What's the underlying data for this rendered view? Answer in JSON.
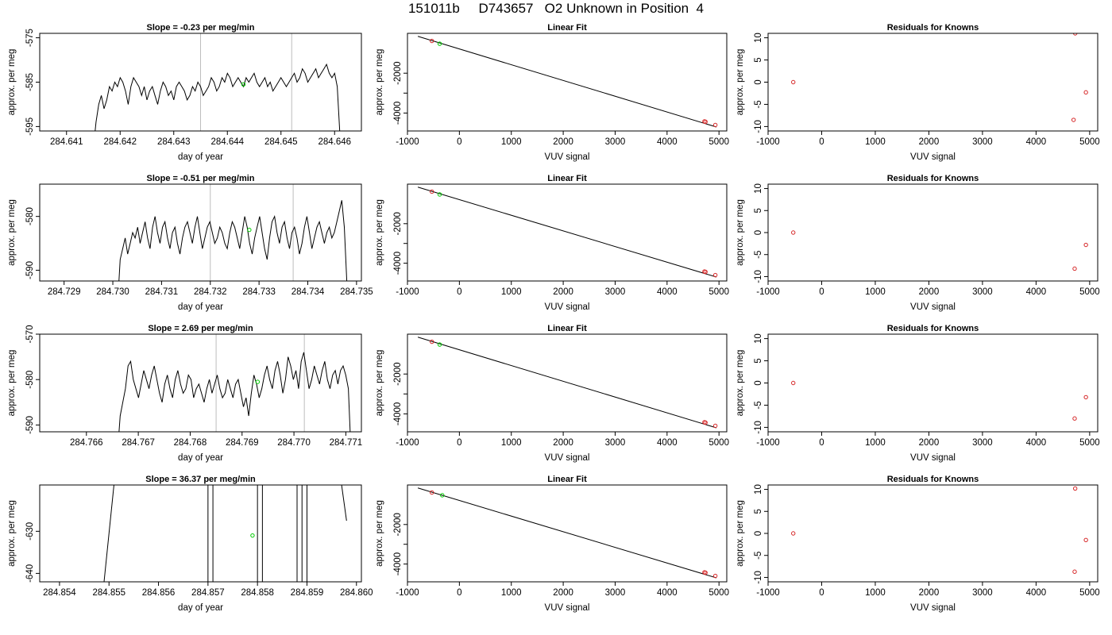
{
  "page": {
    "title": "151011b     D743657   O2 Unknown in Position  4"
  },
  "chart_data": [
    {
      "id": "ts1",
      "type": "line",
      "title": "Slope =  -0.23  per meg/min",
      "xlabel": "day of year",
      "ylabel": "approx. per meg",
      "xlim": [
        284.6405,
        284.6465
      ],
      "ylim": [
        -596,
        -574
      ],
      "xticks": [
        284.641,
        284.642,
        284.643,
        284.644,
        284.645,
        284.646
      ],
      "xtick_labels": [
        "284.641",
        "284.642",
        "284.643",
        "284.644",
        "284.645",
        "284.646"
      ],
      "yticks": [
        -595,
        -585,
        -575
      ],
      "ytick_labels": [
        "-595",
        "-585",
        "-575"
      ],
      "vlines": [
        284.6435,
        284.6452
      ],
      "x_start": 284.6415,
      "x_end": 284.6461,
      "base": -586,
      "series": [
        {
          "values": [
            -600,
            -594,
            -590,
            -588,
            -591,
            -589,
            -586,
            -587,
            -585,
            -586,
            -584,
            -585,
            -587,
            -590,
            -586,
            -584,
            -585,
            -586,
            -588,
            -586,
            -589,
            -587,
            -586,
            -588,
            -590,
            -587,
            -585,
            -586,
            -588,
            -587,
            -589,
            -586,
            -585,
            -586,
            -587,
            -589,
            -588,
            -586,
            -587,
            -585,
            -586,
            -588,
            -587,
            -586,
            -584,
            -585,
            -587,
            -586,
            -584,
            -585,
            -583,
            -584,
            -586,
            -585,
            -584,
            -585,
            -586,
            -584,
            -585,
            -584,
            -583,
            -585,
            -586,
            -585,
            -584,
            -586,
            -585,
            -587,
            -586,
            -585,
            -584,
            -585,
            -586,
            -585,
            -584,
            -583,
            -585,
            -584,
            -582,
            -583,
            -585,
            -584,
            -583,
            -582,
            -584,
            -583,
            -582,
            -581,
            -583,
            -584,
            -583,
            -586,
            -597
          ]
        }
      ],
      "markers": [
        {
          "x": 284.6443,
          "y": -585.5,
          "color": "#00cc00"
        }
      ]
    },
    {
      "id": "fit1",
      "type": "scatter",
      "title": "Linear Fit",
      "xlabel": "VUV signal",
      "ylabel": "approx. per meg",
      "xlim": [
        -1000,
        5150
      ],
      "ylim": [
        -4900,
        0
      ],
      "xticks": [
        -1000,
        0,
        1000,
        2000,
        3000,
        4000,
        5000
      ],
      "xtick_labels": [
        "-1000",
        "0",
        "1000",
        "2000",
        "3000",
        "4000",
        "5000"
      ],
      "yticks": [
        -4000,
        -3000,
        -2000
      ],
      "ytick_labels": [
        "-4000",
        "",
        "-2000"
      ],
      "fit_line": [
        [
          -800,
          -150
        ],
        [
          4950,
          -4700
        ]
      ],
      "points": [
        {
          "x": -530,
          "y": -380,
          "color": "#d62728"
        },
        {
          "x": -380,
          "y": -520,
          "color": "#00cc00"
        },
        {
          "x": 4720,
          "y": -4420,
          "color": "#d62728"
        },
        {
          "x": 4740,
          "y": -4440,
          "color": "#d62728"
        },
        {
          "x": 4930,
          "y": -4600,
          "color": "#d62728"
        }
      ]
    },
    {
      "id": "res1",
      "type": "scatter",
      "title": "Residuals for Knowns",
      "xlabel": "VUV signal",
      "ylabel": "approx. per meg",
      "xlim": [
        -1000,
        5150
      ],
      "ylim": [
        -11,
        11
      ],
      "xticks": [
        -1000,
        0,
        1000,
        2000,
        3000,
        4000,
        5000
      ],
      "xtick_labels": [
        "-1000",
        "0",
        "1000",
        "2000",
        "3000",
        "4000",
        "5000"
      ],
      "yticks": [
        -10,
        -5,
        0,
        5,
        10
      ],
      "ytick_labels": [
        "-10",
        "-5",
        "0",
        "5",
        "10"
      ],
      "points": [
        {
          "x": -530,
          "y": 0,
          "color": "#d62728"
        },
        {
          "x": 4700,
          "y": -8.5,
          "color": "#d62728"
        },
        {
          "x": 4730,
          "y": 11,
          "color": "#d62728"
        },
        {
          "x": 4930,
          "y": -2.3,
          "color": "#d62728"
        }
      ]
    },
    {
      "id": "ts2",
      "type": "line",
      "title": "Slope =  -0.51  per meg/min",
      "xlabel": "day of year",
      "ylabel": "approx. per meg",
      "xlim": [
        284.7285,
        284.7351
      ],
      "ylim": [
        -592,
        -574
      ],
      "xticks": [
        284.729,
        284.73,
        284.731,
        284.732,
        284.733,
        284.734,
        284.735
      ],
      "xtick_labels": [
        "284.729",
        "284.730",
        "284.731",
        "284.732",
        "284.733",
        "284.734",
        "284.735"
      ],
      "yticks": [
        -590,
        -580
      ],
      "ytick_labels": [
        "-590",
        "-580"
      ],
      "vlines": [
        284.732,
        284.7337
      ],
      "x_start": 284.7301,
      "x_end": 284.7348,
      "base": -583,
      "series": [
        {
          "values": [
            -596,
            -588,
            -586,
            -584,
            -587,
            -585,
            -583,
            -584,
            -582,
            -585,
            -583,
            -581,
            -584,
            -586,
            -582,
            -580,
            -583,
            -585,
            -582,
            -581,
            -584,
            -586,
            -583,
            -582,
            -585,
            -587,
            -584,
            -582,
            -581,
            -583,
            -585,
            -582,
            -580,
            -583,
            -586,
            -584,
            -582,
            -581,
            -583,
            -585,
            -584,
            -582,
            -583,
            -585,
            -586,
            -583,
            -581,
            -582,
            -584,
            -586,
            -583,
            -580,
            -582,
            -585,
            -587,
            -584,
            -582,
            -580,
            -583,
            -586,
            -588,
            -584,
            -581,
            -580,
            -583,
            -585,
            -582,
            -581,
            -584,
            -586,
            -583,
            -582,
            -584,
            -587,
            -585,
            -582,
            -580,
            -583,
            -586,
            -584,
            -582,
            -581,
            -583,
            -585,
            -583,
            -582,
            -584,
            -583,
            -581,
            -579,
            -577,
            -582,
            -592
          ]
        }
      ],
      "markers": [
        {
          "x": 284.7328,
          "y": -582.5,
          "color": "#00cc00"
        }
      ]
    },
    {
      "id": "fit2",
      "type": "scatter",
      "title": "Linear Fit",
      "xlabel": "VUV signal",
      "ylabel": "approx. per meg",
      "xlim": [
        -1000,
        5150
      ],
      "ylim": [
        -4900,
        0
      ],
      "xticks": [
        -1000,
        0,
        1000,
        2000,
        3000,
        4000,
        5000
      ],
      "xtick_labels": [
        "-1000",
        "0",
        "1000",
        "2000",
        "3000",
        "4000",
        "5000"
      ],
      "yticks": [
        -4000,
        -3000,
        -2000
      ],
      "ytick_labels": [
        "-4000",
        "",
        "-2000"
      ],
      "fit_line": [
        [
          -800,
          -150
        ],
        [
          4950,
          -4700
        ]
      ],
      "points": [
        {
          "x": -530,
          "y": -380,
          "color": "#d62728"
        },
        {
          "x": -380,
          "y": -520,
          "color": "#00cc00"
        },
        {
          "x": 4720,
          "y": -4420,
          "color": "#d62728"
        },
        {
          "x": 4740,
          "y": -4440,
          "color": "#d62728"
        },
        {
          "x": 4930,
          "y": -4600,
          "color": "#d62728"
        }
      ]
    },
    {
      "id": "res2",
      "type": "scatter",
      "title": "Residuals for Knowns",
      "xlabel": "VUV signal",
      "ylabel": "approx. per meg",
      "xlim": [
        -1000,
        5150
      ],
      "ylim": [
        -11,
        11
      ],
      "xticks": [
        -1000,
        0,
        1000,
        2000,
        3000,
        4000,
        5000
      ],
      "xtick_labels": [
        "-1000",
        "0",
        "1000",
        "2000",
        "3000",
        "4000",
        "5000"
      ],
      "yticks": [
        -10,
        -5,
        0,
        5,
        10
      ],
      "ytick_labels": [
        "-10",
        "-5",
        "0",
        "5",
        "10"
      ],
      "points": [
        {
          "x": -530,
          "y": 0,
          "color": "#d62728"
        },
        {
          "x": 4720,
          "y": -8.2,
          "color": "#d62728"
        },
        {
          "x": 4930,
          "y": -2.8,
          "color": "#d62728"
        }
      ]
    },
    {
      "id": "ts3",
      "type": "line",
      "title": "Slope =  2.69  per meg/min",
      "xlabel": "day of year",
      "ylabel": "approx. per meg",
      "xlim": [
        284.7651,
        284.7713
      ],
      "ylim": [
        -591.5,
        -570
      ],
      "xticks": [
        284.766,
        284.767,
        284.768,
        284.769,
        284.77,
        284.771
      ],
      "xtick_labels": [
        "284.766",
        "284.767",
        "284.768",
        "284.769",
        "284.770",
        "284.771"
      ],
      "yticks": [
        -590,
        -580,
        -570
      ],
      "ytick_labels": [
        "-590",
        "-580",
        "-570"
      ],
      "vlines": [
        284.7685,
        284.7702
      ],
      "x_start": 284.7666,
      "x_end": 284.7711,
      "base": -582,
      "series": [
        {
          "values": [
            -596,
            -588,
            -585,
            -582,
            -577,
            -576,
            -580,
            -582,
            -584,
            -581,
            -578,
            -580,
            -582,
            -579,
            -577,
            -580,
            -583,
            -585,
            -581,
            -579,
            -582,
            -584,
            -580,
            -578,
            -581,
            -583,
            -582,
            -579,
            -580,
            -584,
            -582,
            -581,
            -583,
            -585,
            -582,
            -580,
            -583,
            -581,
            -579,
            -582,
            -584,
            -583,
            -580,
            -582,
            -584,
            -581,
            -580,
            -583,
            -586,
            -584,
            -588,
            -583,
            -579,
            -581,
            -584,
            -582,
            -579,
            -577,
            -580,
            -582,
            -578,
            -576,
            -579,
            -583,
            -580,
            -575,
            -577,
            -580,
            -578,
            -582,
            -576,
            -574,
            -578,
            -582,
            -580,
            -577,
            -579,
            -581,
            -578,
            -576,
            -580,
            -582,
            -579,
            -578,
            -581,
            -578,
            -577,
            -579,
            -582,
            -596
          ]
        }
      ],
      "markers": [
        {
          "x": 284.7693,
          "y": -580.5,
          "color": "#00cc00"
        }
      ]
    },
    {
      "id": "fit3",
      "type": "scatter",
      "title": "Linear Fit",
      "xlabel": "VUV signal",
      "ylabel": "approx. per meg",
      "xlim": [
        -1000,
        5150
      ],
      "ylim": [
        -4900,
        0
      ],
      "xticks": [
        -1000,
        0,
        1000,
        2000,
        3000,
        4000,
        5000
      ],
      "xtick_labels": [
        "-1000",
        "0",
        "1000",
        "2000",
        "3000",
        "4000",
        "5000"
      ],
      "yticks": [
        -4000,
        -3000,
        -2000
      ],
      "ytick_labels": [
        "-4000",
        "",
        "-2000"
      ],
      "fit_line": [
        [
          -800,
          -150
        ],
        [
          4950,
          -4700
        ]
      ],
      "points": [
        {
          "x": -530,
          "y": -380,
          "color": "#d62728"
        },
        {
          "x": -380,
          "y": -520,
          "color": "#00cc00"
        },
        {
          "x": 4720,
          "y": -4420,
          "color": "#d62728"
        },
        {
          "x": 4740,
          "y": -4440,
          "color": "#d62728"
        },
        {
          "x": 4930,
          "y": -4600,
          "color": "#d62728"
        }
      ]
    },
    {
      "id": "res3",
      "type": "scatter",
      "title": "Residuals for Knowns",
      "xlabel": "VUV signal",
      "ylabel": "approx. per meg",
      "xlim": [
        -1000,
        5150
      ],
      "ylim": [
        -11,
        11
      ],
      "xticks": [
        -1000,
        0,
        1000,
        2000,
        3000,
        4000,
        5000
      ],
      "xtick_labels": [
        "-1000",
        "0",
        "1000",
        "2000",
        "3000",
        "4000",
        "5000"
      ],
      "yticks": [
        -10,
        -5,
        0,
        5,
        10
      ],
      "ytick_labels": [
        "-10",
        "-5",
        "0",
        "5",
        "10"
      ],
      "points": [
        {
          "x": -530,
          "y": 0,
          "color": "#d62728"
        },
        {
          "x": 4720,
          "y": -8.0,
          "color": "#d62728"
        },
        {
          "x": 4930,
          "y": -3.2,
          "color": "#d62728"
        }
      ]
    },
    {
      "id": "ts4",
      "type": "line",
      "title": "Slope =  36.37  per meg/min",
      "xlabel": "day of year",
      "ylabel": "approx. per meg",
      "xlim": [
        284.8536,
        284.8601
      ],
      "ylim": [
        -642,
        -619
      ],
      "xticks": [
        284.854,
        284.855,
        284.856,
        284.857,
        284.858,
        284.859,
        284.86
      ],
      "xtick_labels": [
        "284.854",
        "284.855",
        "284.856",
        "284.857",
        "284.858",
        "284.859",
        "284.860"
      ],
      "yticks": [
        -640,
        -630
      ],
      "ytick_labels": [
        "-640",
        "-630"
      ],
      "vlines": [
        284.857,
        284.8571,
        284.858,
        284.8581,
        284.8588,
        284.8589,
        284.859
      ],
      "segments": [
        [
          [
            284.8549,
            -642
          ],
          [
            284.8551,
            -619
          ]
        ],
        [
          [
            284.8597,
            -619
          ],
          [
            284.8598,
            -627.5
          ]
        ]
      ],
      "markers": [
        {
          "x": 284.8579,
          "y": -631,
          "color": "#00cc00"
        }
      ]
    },
    {
      "id": "fit4",
      "type": "scatter",
      "title": "Linear Fit",
      "xlabel": "VUV signal",
      "ylabel": "approx. per meg",
      "xlim": [
        -1000,
        5150
      ],
      "ylim": [
        -4900,
        0
      ],
      "xticks": [
        -1000,
        0,
        1000,
        2000,
        3000,
        4000,
        5000
      ],
      "xtick_labels": [
        "-1000",
        "0",
        "1000",
        "2000",
        "3000",
        "4000",
        "5000"
      ],
      "yticks": [
        -4000,
        -3000,
        -2000
      ],
      "ytick_labels": [
        "-4000",
        "",
        "-2000"
      ],
      "fit_line": [
        [
          -800,
          -150
        ],
        [
          4950,
          -4700
        ]
      ],
      "points": [
        {
          "x": -530,
          "y": -380,
          "color": "#d62728"
        },
        {
          "x": -330,
          "y": -520,
          "color": "#00cc00"
        },
        {
          "x": 4720,
          "y": -4420,
          "color": "#d62728"
        },
        {
          "x": 4740,
          "y": -4440,
          "color": "#d62728"
        },
        {
          "x": 4930,
          "y": -4600,
          "color": "#d62728"
        }
      ]
    },
    {
      "id": "res4",
      "type": "scatter",
      "title": "Residuals for Knowns",
      "xlabel": "VUV signal",
      "ylabel": "approx. per meg",
      "xlim": [
        -1000,
        5150
      ],
      "ylim": [
        -11,
        11
      ],
      "xticks": [
        -1000,
        0,
        1000,
        2000,
        3000,
        4000,
        5000
      ],
      "xtick_labels": [
        "-1000",
        "0",
        "1000",
        "2000",
        "3000",
        "4000",
        "5000"
      ],
      "yticks": [
        -10,
        -5,
        0,
        5,
        10
      ],
      "ytick_labels": [
        "-10",
        "-5",
        "0",
        "5",
        "10"
      ],
      "points": [
        {
          "x": -530,
          "y": 0,
          "color": "#d62728"
        },
        {
          "x": 4720,
          "y": -8.7,
          "color": "#d62728"
        },
        {
          "x": 4730,
          "y": 10.2,
          "color": "#d62728"
        },
        {
          "x": 4930,
          "y": -1.5,
          "color": "#d62728"
        }
      ]
    }
  ]
}
